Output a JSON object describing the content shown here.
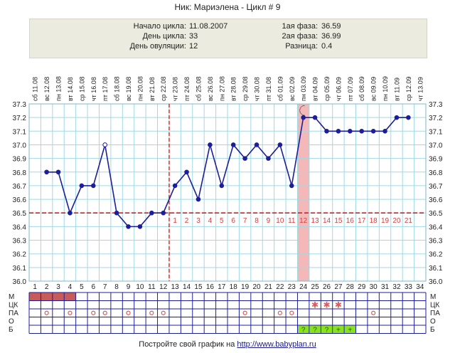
{
  "header": {
    "title": "Ник: Мариэлена - Цикл # 9"
  },
  "summary": {
    "cycle_start_label": "Начало цикла:",
    "cycle_start_value": "11.08.2007",
    "cycle_day_label": "День цикла:",
    "cycle_day_value": "33",
    "ovulation_day_label": "День овуляции:",
    "ovulation_day_value": "12",
    "phase1_label": "1ая фаза:",
    "phase1_value": "36.59",
    "phase2_label": "2ая фаза:",
    "phase2_value": "36.99",
    "diff_label": "Разница:",
    "diff_value": "0.4"
  },
  "footer": {
    "prefix": "Постройте свой график на ",
    "link": "http://www.babyplan.ru"
  },
  "chart_data": {
    "type": "line",
    "title": "",
    "xlabel": "",
    "ylabel": "",
    "ylim": [
      36.0,
      37.3
    ],
    "ytick_step": 0.1,
    "grid": true,
    "dates": [
      "сб 11.08",
      "вс 12.08",
      "пн 13.08",
      "вт 14.08",
      "ср 15.08",
      "чт 16.08",
      "пт 17.08",
      "сб 18.08",
      "вс 19.08",
      "пн 20.08",
      "вт 21.08",
      "ср 22.08",
      "чт 23.08",
      "пт 24.08",
      "сб 25.08",
      "вс 26.08",
      "пн 27.08",
      "вт 28.08",
      "ср 29.08",
      "чт 30.08",
      "пт 31.08",
      "сб 01.09",
      "вс 02.09",
      "пн 03.09",
      "вт 04.09",
      "ср 05.09",
      "чт 06.09",
      "пт 07.09",
      "сб 08.09",
      "вс 09.09",
      "пн 10.09",
      "вт 11.09",
      "ср 12.09",
      "чт 13.09"
    ],
    "days": [
      1,
      2,
      3,
      4,
      5,
      6,
      7,
      8,
      9,
      10,
      11,
      12,
      13,
      14,
      15,
      16,
      17,
      18,
      19,
      20,
      21,
      22,
      23,
      24,
      25,
      26,
      27,
      28,
      29,
      30,
      31,
      32,
      33,
      34
    ],
    "temperatures": [
      null,
      36.8,
      36.8,
      36.5,
      36.7,
      36.7,
      37.0,
      36.5,
      36.4,
      36.4,
      36.5,
      36.5,
      36.7,
      36.8,
      36.6,
      37.0,
      36.7,
      37.0,
      36.9,
      37.0,
      36.9,
      37.0,
      36.7,
      37.2,
      37.2,
      37.1,
      37.1,
      37.1,
      37.1,
      37.1,
      37.1,
      37.2,
      37.2,
      null
    ],
    "open_points": [
      7
    ],
    "cover_line": 36.5,
    "ovulation_line_day": 12,
    "ovulation_highlight_day": 24,
    "ovulation_icon": "moon-icon",
    "post_ovulation_day_labels": [
      "1",
      "2",
      "3",
      "4",
      "5",
      "6",
      "7",
      "8",
      "9",
      "10",
      "11",
      "12",
      "13",
      "14",
      "15",
      "16",
      "17",
      "18",
      "19",
      "20",
      "21"
    ],
    "rows": {
      "labels": [
        "М",
        "ЦК",
        "ПА",
        "О",
        "Б"
      ],
      "menstruation_days": [
        1,
        2,
        3,
        4
      ],
      "cervical_star_days": [
        25,
        26,
        27
      ],
      "pa_days": [
        2,
        4,
        6,
        7,
        9,
        11,
        12,
        19,
        22,
        23,
        30
      ],
      "test_days": [
        24,
        25,
        26,
        27,
        28
      ],
      "test_symbols": [
        "?",
        "?",
        "?",
        "+",
        "+"
      ]
    },
    "colors": {
      "line": "#1c1f99",
      "grid": "#9fd9e4",
      "cover": "#d42020",
      "highlight": "#f4b8b8",
      "day_label": "#d44040",
      "menstruation": "#c85a5a",
      "star": "#e05a5a",
      "test": "#88e21e"
    }
  }
}
